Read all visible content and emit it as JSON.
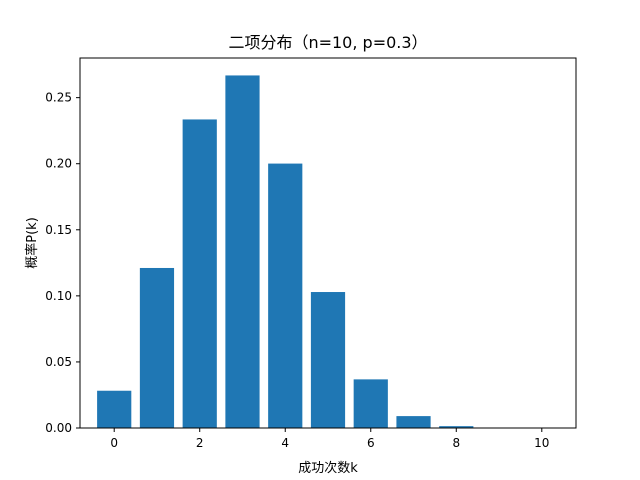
{
  "chart_data": {
    "type": "bar",
    "title": "二项分布（n=10, p=0.3）",
    "xlabel": "成功次数k",
    "ylabel": "概率P(k)",
    "categories": [
      0,
      1,
      2,
      3,
      4,
      5,
      6,
      7,
      8,
      9,
      10
    ],
    "values": [
      0.0282,
      0.1211,
      0.2335,
      0.2668,
      0.2001,
      0.1029,
      0.0368,
      0.009,
      0.0014,
      0.0001,
      0.0
    ],
    "xlim": [
      -0.8,
      10.8
    ],
    "ylim": [
      0,
      0.28
    ],
    "xticks": [
      0,
      2,
      4,
      6,
      8,
      10
    ],
    "xtick_labels": [
      "0",
      "2",
      "4",
      "6",
      "8",
      "10"
    ],
    "yticks": [
      0.0,
      0.05,
      0.1,
      0.15,
      0.2,
      0.25
    ],
    "ytick_labels": [
      "0.00",
      "0.05",
      "0.10",
      "0.15",
      "0.20",
      "0.25"
    ],
    "bar_color": "#1f77b4",
    "grid": false,
    "legend": "none"
  }
}
